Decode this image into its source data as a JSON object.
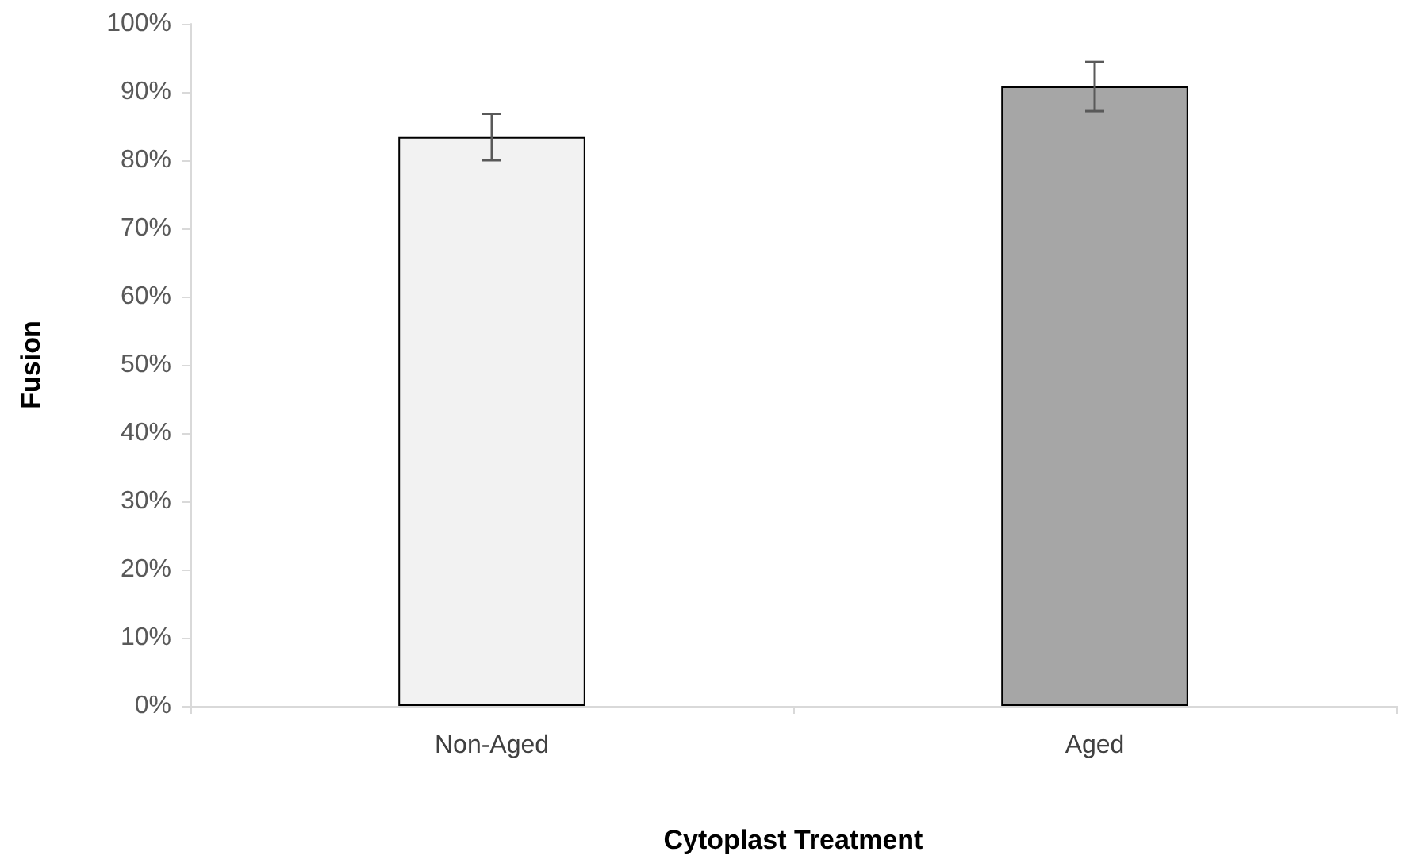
{
  "chart_data": {
    "type": "bar",
    "xlabel": "Cytoplast Treatment",
    "ylabel": "Fusion",
    "categories": [
      "Non-Aged",
      "Aged"
    ],
    "values": [
      83.4,
      90.8
    ],
    "colors": [
      "#f2f2f2",
      "#a6a6a6"
    ],
    "errors": [
      3.4,
      3.6
    ],
    "ylim": [
      0,
      100
    ],
    "yticks": [
      {
        "value": 0,
        "label": "0%"
      },
      {
        "value": 10,
        "label": "10%"
      },
      {
        "value": 20,
        "label": "20%"
      },
      {
        "value": 30,
        "label": "30%"
      },
      {
        "value": 40,
        "label": "40%"
      },
      {
        "value": 50,
        "label": "50%"
      },
      {
        "value": 60,
        "label": "60%"
      },
      {
        "value": 70,
        "label": "70%"
      },
      {
        "value": 80,
        "label": "80%"
      },
      {
        "value": 90,
        "label": "90%"
      },
      {
        "value": 100,
        "label": "100%"
      }
    ],
    "grid": false
  }
}
